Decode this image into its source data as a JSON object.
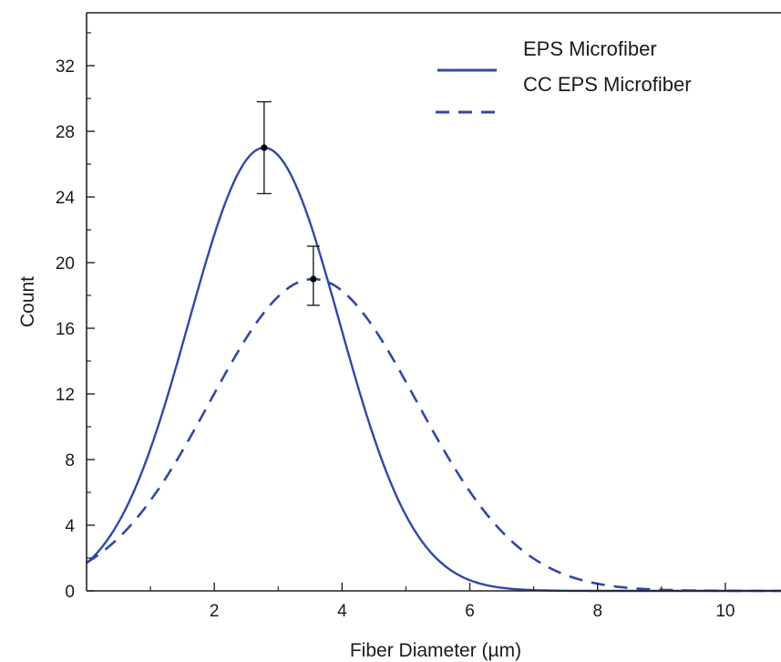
{
  "chart_data": {
    "type": "line",
    "title": "",
    "xlabel": "Fiber Diameter (µm)",
    "ylabel": "Count",
    "xlim": [
      0,
      11
    ],
    "ylim": [
      0,
      36
    ],
    "xticks": [
      2,
      4,
      6,
      8,
      10
    ],
    "yticks": [
      0,
      4,
      8,
      12,
      16,
      20,
      24,
      28,
      32
    ],
    "grid": false,
    "legend_position": "top-right",
    "series": [
      {
        "name": "EPS Microfiber",
        "style": "solid",
        "color": "#3347a6",
        "curve": "gaussian",
        "peak_x": 2.78,
        "peak_y": 27.0,
        "sigma": 1.18,
        "x": [
          0,
          0.5,
          1,
          1.5,
          2,
          2.5,
          2.78,
          3,
          3.5,
          4,
          4.5,
          5,
          5.5,
          6,
          6.5,
          7,
          8,
          9,
          10,
          11
        ],
        "y": [
          2.2,
          5.2,
          8.2,
          14.4,
          21.0,
          25.6,
          27.0,
          26.6,
          22.2,
          15.7,
          9.3,
          4.6,
          1.9,
          0.66,
          0.19,
          0.05,
          0.0,
          0.0,
          0.0,
          0.0
        ],
        "error_bar": {
          "x": 2.78,
          "y": 27.0,
          "low": 24.2,
          "high": 29.8
        }
      },
      {
        "name": "CC EPS Microfiber",
        "style": "dashed",
        "color": "#3347a6",
        "curve": "gaussian",
        "peak_x": 3.55,
        "peak_y": 19.0,
        "sigma": 1.62,
        "x": [
          0,
          0.5,
          1,
          1.5,
          2,
          2.5,
          3,
          3.55,
          4,
          4.5,
          5,
          5.5,
          6,
          6.5,
          7,
          7.5,
          8,
          8.5,
          9,
          10,
          11
        ],
        "y": [
          2.8,
          3.2,
          5.7,
          8.5,
          11.6,
          14.6,
          17.3,
          19.0,
          18.4,
          16.6,
          13.6,
          10.1,
          6.8,
          4.1,
          2.2,
          1.1,
          0.51,
          0.18,
          0.08,
          0.01,
          0.0
        ],
        "error_bar": {
          "x": 3.55,
          "y": 19.0,
          "low": 17.4,
          "high": 21.0
        }
      }
    ]
  }
}
